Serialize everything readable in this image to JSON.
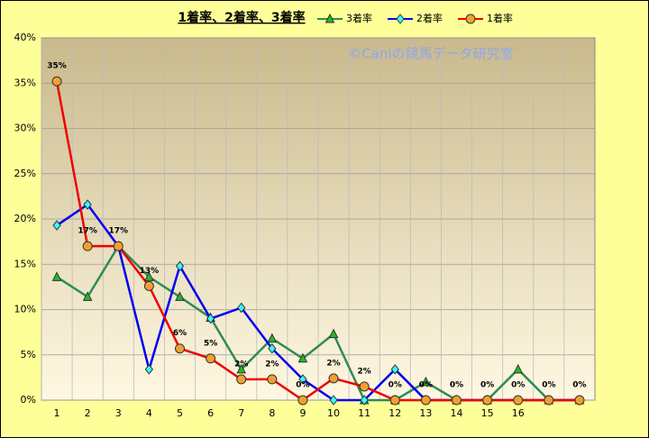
{
  "chart_data": {
    "type": "line",
    "title": "1着率、2着率、3着率",
    "annotation": "©Caniの競馬データ研究室",
    "categories": [
      "1",
      "2",
      "3",
      "4",
      "5",
      "6",
      "7",
      "8",
      "9",
      "10",
      "11",
      "12",
      "13",
      "14",
      "15",
      "16",
      null,
      null
    ],
    "ylim": [
      0,
      40
    ],
    "yticks": [
      {
        "value": 0,
        "label": "0%"
      },
      {
        "value": 5,
        "label": "5%"
      },
      {
        "value": 10,
        "label": "10%"
      },
      {
        "value": 15,
        "label": "15%"
      },
      {
        "value": 20,
        "label": "20%"
      },
      {
        "value": 25,
        "label": "25%"
      },
      {
        "value": 30,
        "label": "30%"
      },
      {
        "value": 35,
        "label": "35%"
      },
      {
        "value": 40,
        "label": "40%"
      }
    ],
    "grid": true,
    "series": [
      {
        "name": "3着率",
        "color": "#2e8b57",
        "marker": "triangle",
        "marker_color": "#22bb22",
        "values": [
          13.6,
          11.4,
          17,
          13.6,
          11.4,
          9.1,
          3.4,
          6.8,
          4.6,
          7.3,
          0,
          0,
          2,
          0,
          0,
          3.4,
          0,
          0
        ]
      },
      {
        "name": "2着率",
        "color": "#0000ee",
        "marker": "diamond",
        "marker_color": "#33ffff",
        "values": [
          19.3,
          21.6,
          17,
          3.4,
          14.8,
          9,
          10.2,
          5.7,
          2.3,
          0,
          0,
          3.4,
          0,
          0,
          0,
          0,
          0,
          0
        ]
      },
      {
        "name": "1着率",
        "color": "#ee0000",
        "marker": "circle",
        "marker_color": "#f0a030",
        "values": [
          35.2,
          17,
          17,
          12.6,
          5.7,
          4.6,
          2.3,
          2.3,
          0,
          2.4,
          1.5,
          0,
          0,
          0,
          0,
          0,
          0,
          0
        ],
        "value_labels": [
          "35%",
          "17%",
          "17%",
          "13%",
          "6%",
          "5%",
          "2%",
          "2%",
          "0%",
          "2%",
          "2%",
          "0%",
          "0%",
          "0%",
          "0%",
          "0%",
          "0%",
          "0%"
        ]
      }
    ]
  }
}
